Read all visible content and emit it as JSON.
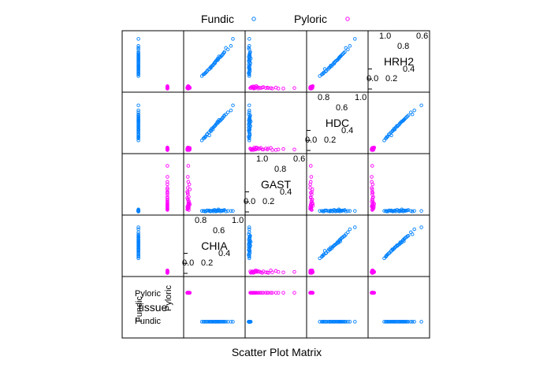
{
  "chart_data": {
    "type": "scatter",
    "title": "",
    "xlabel": "Scatter Plot Matrix",
    "ylabel": "",
    "legend": {
      "placement": "top",
      "items": [
        {
          "name": "Fundic",
          "color": "#0080ff",
          "marker": "circle"
        },
        {
          "name": "Pyloric",
          "color": "#ff00ff",
          "marker": "circle"
        }
      ]
    },
    "variables": [
      "tissue",
      "CHIA",
      "GAST",
      "HDC",
      "HRH2"
    ],
    "diagonal": [
      {
        "name": "tissue",
        "tick_labels": [
          "Fundic",
          "Pyloric"
        ],
        "rotated_tick_labels": [
          "Fundic",
          "Pyloric"
        ]
      },
      {
        "name": "CHIA",
        "range": [
          0,
          1.1
        ],
        "ticks_top": [
          "0.8",
          "0.6",
          "1.0"
        ],
        "ticks_bottom": [
          "0.0",
          "0.2",
          "0.4"
        ]
      },
      {
        "name": "GAST",
        "range": [
          0,
          1.1
        ],
        "ticks_top": [
          "1.0",
          "0.8",
          "0.6"
        ],
        "ticks_bottom": [
          "0.0",
          "0.2",
          "0.4"
        ]
      },
      {
        "name": "HDC",
        "range": [
          0,
          1.1
        ],
        "ticks_top": [
          "0.8",
          "0.6",
          "1.0"
        ],
        "ticks_bottom": [
          "0.0",
          "0.2",
          "0.4"
        ]
      },
      {
        "name": "HRH2",
        "range": [
          0,
          1.1
        ],
        "ticks_top": [
          "1.0",
          "0.8",
          "0.6"
        ],
        "ticks_bottom": [
          "0.0",
          "0.2",
          "0.4"
        ]
      }
    ],
    "series": [
      {
        "name": "Fundic",
        "tissue": 1,
        "CHIA": [
          0.62,
          0.45,
          0.78,
          0.35,
          0.55,
          0.88,
          0.52,
          0.67,
          0.3,
          0.72,
          0.48,
          0.58,
          0.41,
          0.82,
          0.63,
          0.5,
          0.38,
          0.69,
          0.57,
          0.75,
          0.44,
          0.6,
          0.53,
          0.33,
          0.66,
          0.71,
          0.47,
          0.92,
          0.4,
          0.56,
          0.61,
          0.36,
          0.74,
          0.49,
          0.64
        ],
        "GAST": [
          0.02,
          0.03,
          0.01,
          0.02,
          0.04,
          0.02,
          0.03,
          0.01,
          0.02,
          0.03,
          0.02,
          0.01,
          0.03,
          0.02,
          0.05,
          0.02,
          0.01,
          0.03,
          0.02,
          0.04,
          0.02,
          0.03,
          0.01,
          0.02,
          0.03,
          0.02,
          0.01,
          0.02,
          0.03,
          0.04,
          0.02,
          0.01,
          0.03,
          0.02,
          0.03
        ],
        "HDC": [
          0.55,
          0.3,
          0.72,
          0.25,
          0.48,
          0.8,
          0.42,
          0.6,
          0.2,
          0.66,
          0.38,
          0.52,
          0.33,
          0.76,
          0.58,
          0.44,
          0.28,
          0.62,
          0.5,
          0.7,
          0.36,
          0.54,
          0.46,
          0.24,
          0.59,
          0.64,
          0.4,
          0.9,
          0.32,
          0.49,
          0.57,
          0.27,
          0.68,
          0.41,
          0.61
        ],
        "HRH2": [
          0.58,
          0.4,
          0.82,
          0.3,
          0.52,
          0.86,
          0.47,
          0.64,
          0.26,
          0.7,
          0.42,
          0.56,
          0.37,
          0.79,
          0.61,
          0.46,
          0.33,
          0.66,
          0.54,
          0.74,
          0.39,
          0.57,
          0.49,
          0.29,
          0.63,
          0.68,
          0.43,
          1.0,
          0.35,
          0.51,
          0.6,
          0.31,
          0.72,
          0.45,
          0.65
        ]
      },
      {
        "name": "Pyloric",
        "tissue": 2,
        "CHIA": [
          0.03,
          0.02,
          0.05,
          0.01,
          0.04,
          0.02,
          0.03,
          0.06,
          0.02,
          0.01,
          0.04,
          0.03,
          0.02,
          0.05,
          0.03,
          0.01,
          0.02,
          0.04,
          0.03,
          0.02,
          0.06,
          0.01,
          0.03,
          0.02,
          0.04,
          0.02,
          0.03,
          0.05
        ],
        "GAST": [
          0.92,
          0.7,
          0.55,
          0.4,
          0.3,
          0.25,
          0.2,
          0.15,
          0.12,
          0.1,
          0.08,
          0.6,
          0.35,
          0.18,
          0.07,
          0.05,
          0.48,
          0.22,
          0.14,
          0.09,
          0.45,
          0.28,
          0.11,
          0.06,
          0.04,
          0.38,
          0.16,
          0.13
        ],
        "HDC": [
          0.02,
          0.03,
          0.01,
          0.04,
          0.02,
          0.05,
          0.03,
          0.02,
          0.06,
          0.01,
          0.03,
          0.02,
          0.04,
          0.05,
          0.02,
          0.03,
          0.01,
          0.04,
          0.02,
          0.03,
          0.05,
          0.02,
          0.03,
          0.01,
          0.04,
          0.02,
          0.06,
          0.03
        ],
        "HRH2": [
          0.02,
          0.01,
          0.03,
          0.02,
          0.04,
          0.02,
          0.01,
          0.03,
          0.05,
          0.02,
          0.03,
          0.01,
          0.02,
          0.04,
          0.03,
          0.02,
          0.01,
          0.03,
          0.02,
          0.05,
          0.02,
          0.03,
          0.01,
          0.04,
          0.02,
          0.03,
          0.06,
          0.02
        ]
      }
    ]
  }
}
